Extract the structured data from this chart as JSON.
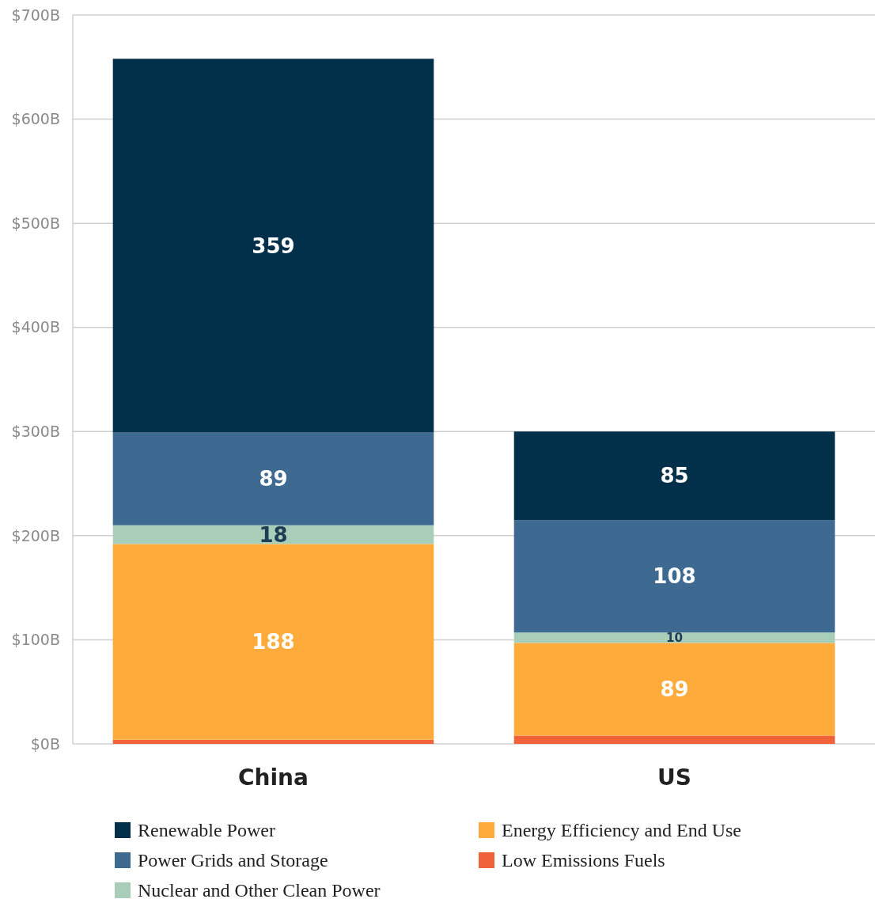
{
  "chart_data": {
    "type": "bar",
    "stacked": true,
    "categories": [
      "China",
      "US"
    ],
    "series": [
      {
        "name": "Low Emissions Fuels",
        "color": "#f0623a",
        "values": [
          4,
          8
        ],
        "value_labels": [
          null,
          null
        ]
      },
      {
        "name": "Energy Efficiency and End Use",
        "color": "#ffab3b",
        "values": [
          188,
          89
        ],
        "value_labels": [
          "188",
          "89"
        ]
      },
      {
        "name": "Nuclear and Other Clean Power",
        "color": "#a8cdb8",
        "values": [
          18,
          10
        ],
        "value_labels": [
          "18",
          "10"
        ]
      },
      {
        "name": "Power Grids and Storage",
        "color": "#3e6990",
        "values": [
          89,
          108
        ],
        "value_labels": [
          "89",
          "108"
        ]
      },
      {
        "name": "Renewable Power",
        "color": "#022f4a",
        "values": [
          359,
          85
        ],
        "value_labels": [
          "359",
          "85"
        ]
      }
    ],
    "ylim": [
      0,
      700
    ],
    "yticks": [
      {
        "value": 0,
        "label": "$0B"
      },
      {
        "value": 100,
        "label": "$100B"
      },
      {
        "value": 200,
        "label": "$200B"
      },
      {
        "value": 300,
        "label": "$300B"
      },
      {
        "value": 400,
        "label": "$400B"
      },
      {
        "value": 500,
        "label": "$500B"
      },
      {
        "value": 600,
        "label": "$600B"
      },
      {
        "value": 700,
        "label": "$700B"
      }
    ],
    "grid": "y",
    "legend": "bottom"
  }
}
